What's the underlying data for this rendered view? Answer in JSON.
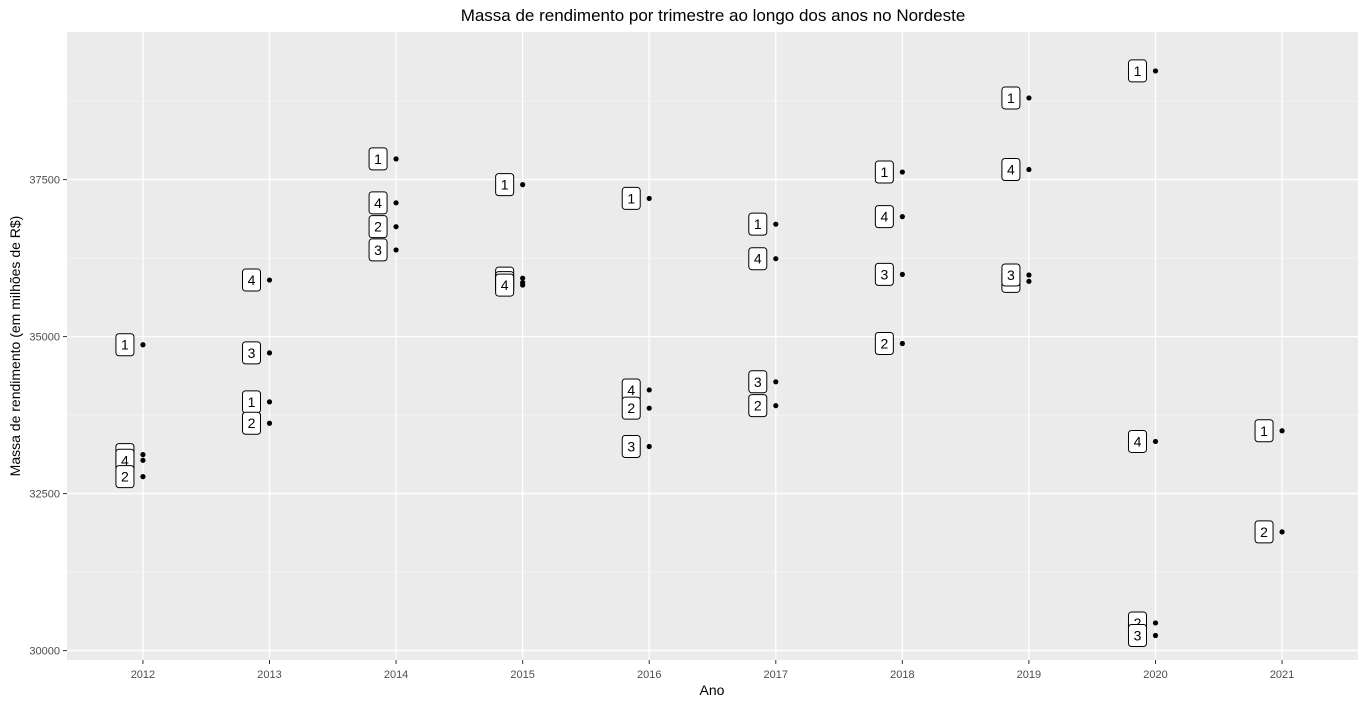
{
  "chart_data": {
    "type": "scatter",
    "title": "Massa de rendimento por trimestre ao longo dos anos no Nordeste",
    "xlabel": "Ano",
    "ylabel": "Massa de rendimento (em milhões de R$)",
    "x_ticks": [
      "2012",
      "2013",
      "2014",
      "2015",
      "2016",
      "2017",
      "2018",
      "2019",
      "2020",
      "2021"
    ],
    "y_ticks": [
      30000,
      32500,
      35000,
      37500
    ],
    "y_tick_labels": [
      "30000",
      "32500",
      "35000",
      "37500"
    ],
    "xlim": [
      2011.4,
      2021.6
    ],
    "ylim": [
      29850,
      39850
    ],
    "grid": true,
    "legend": "none",
    "points": [
      {
        "ano": 2012,
        "trimestre": "1",
        "valor": 34870
      },
      {
        "ano": 2012,
        "trimestre": "3",
        "valor": 33120
      },
      {
        "ano": 2012,
        "trimestre": "4",
        "valor": 33030
      },
      {
        "ano": 2012,
        "trimestre": "2",
        "valor": 32770
      },
      {
        "ano": 2013,
        "trimestre": "4",
        "valor": 35900
      },
      {
        "ano": 2013,
        "trimestre": "3",
        "valor": 34740
      },
      {
        "ano": 2013,
        "trimestre": "1",
        "valor": 33960
      },
      {
        "ano": 2013,
        "trimestre": "2",
        "valor": 33620
      },
      {
        "ano": 2014,
        "trimestre": "1",
        "valor": 37830
      },
      {
        "ano": 2014,
        "trimestre": "4",
        "valor": 37130
      },
      {
        "ano": 2014,
        "trimestre": "2",
        "valor": 36750
      },
      {
        "ano": 2014,
        "trimestre": "3",
        "valor": 36380
      },
      {
        "ano": 2015,
        "trimestre": "1",
        "valor": 37420
      },
      {
        "ano": 2015,
        "trimestre": "3",
        "valor": 35930
      },
      {
        "ano": 2015,
        "trimestre": "2",
        "valor": 35860
      },
      {
        "ano": 2015,
        "trimestre": "4",
        "valor": 35820
      },
      {
        "ano": 2016,
        "trimestre": "1",
        "valor": 37200
      },
      {
        "ano": 2016,
        "trimestre": "4",
        "valor": 34150
      },
      {
        "ano": 2016,
        "trimestre": "2",
        "valor": 33860
      },
      {
        "ano": 2016,
        "trimestre": "3",
        "valor": 33250
      },
      {
        "ano": 2017,
        "trimestre": "1",
        "valor": 36790
      },
      {
        "ano": 2017,
        "trimestre": "4",
        "valor": 36240
      },
      {
        "ano": 2017,
        "trimestre": "3",
        "valor": 34280
      },
      {
        "ano": 2017,
        "trimestre": "2",
        "valor": 33900
      },
      {
        "ano": 2018,
        "trimestre": "1",
        "valor": 37620
      },
      {
        "ano": 2018,
        "trimestre": "4",
        "valor": 36910
      },
      {
        "ano": 2018,
        "trimestre": "3",
        "valor": 35990
      },
      {
        "ano": 2018,
        "trimestre": "2",
        "valor": 34890
      },
      {
        "ano": 2019,
        "trimestre": "1",
        "valor": 38800
      },
      {
        "ano": 2019,
        "trimestre": "4",
        "valor": 37660
      },
      {
        "ano": 2019,
        "trimestre": "2",
        "valor": 35880
      },
      {
        "ano": 2019,
        "trimestre": "3",
        "valor": 35980
      },
      {
        "ano": 2020,
        "trimestre": "1",
        "valor": 39230
      },
      {
        "ano": 2020,
        "trimestre": "4",
        "valor": 33330
      },
      {
        "ano": 2020,
        "trimestre": "2",
        "valor": 30440
      },
      {
        "ano": 2020,
        "trimestre": "3",
        "valor": 30240
      },
      {
        "ano": 2021,
        "trimestre": "1",
        "valor": 33500
      },
      {
        "ano": 2021,
        "trimestre": "2",
        "valor": 31890
      }
    ]
  }
}
